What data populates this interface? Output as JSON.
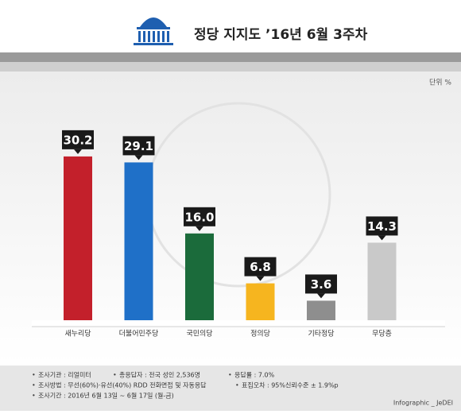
{
  "chart_data": {
    "type": "bar",
    "title": "정당 지지도 ’16년 6월 3주차",
    "unit": "단위 %",
    "categories": [
      "새누리당",
      "더불어민주당",
      "국민의당",
      "정의당",
      "기타정당",
      "무당층"
    ],
    "values": [
      30.2,
      29.1,
      16.0,
      6.8,
      3.6,
      14.3
    ],
    "value_labels": [
      "30.2",
      "29.1",
      "16.0",
      "6.8",
      "3.6",
      "14.3"
    ],
    "colors": [
      "#c3202b",
      "#1f70c8",
      "#1b6b3b",
      "#f6b51f",
      "#8e8e8e",
      "#c9c9c9"
    ],
    "ylim": [
      0,
      40
    ],
    "notes": [
      [
        "조사기관 : 리얼미터",
        "총응답자 : 전국 성인 2,536명",
        "응답률 : 7.0%"
      ],
      [
        "조사방법 : 무선(60%)·유선(40%) RDD 전화면접 및 자동응답",
        "표집오차 : 95%신뢰수준 ± 1.9%p"
      ],
      [
        "조사기간 : 2016년 6월 13일 ~ 6월 17일 (월-금)"
      ]
    ],
    "credit": "Infographic _ JeDEI"
  }
}
